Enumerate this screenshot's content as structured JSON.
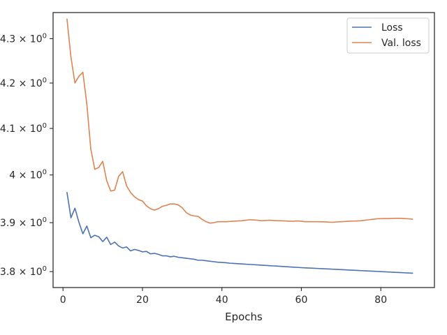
{
  "chart_data": {
    "type": "line",
    "title": "",
    "xlabel": "Epochs",
    "ylabel": "",
    "xlim": [
      -2.5,
      93.5
    ],
    "ylim": [
      3.768,
      4.36
    ],
    "yscale": "log",
    "x_ticks": [
      0,
      20,
      40,
      60,
      80
    ],
    "x_tick_labels": [
      "0",
      "20",
      "40",
      "60",
      "80"
    ],
    "y_ticks": [
      3.8,
      3.9,
      4.0,
      4.1,
      4.2,
      4.3
    ],
    "y_tick_labels": [
      {
        "mant": "3.8",
        "base": "10",
        "exp": "0"
      },
      {
        "mant": "3.9",
        "base": "10",
        "exp": "0"
      },
      {
        "mant": "4",
        "base": "10",
        "exp": "0"
      },
      {
        "mant": "4.1",
        "base": "10",
        "exp": "0"
      },
      {
        "mant": "4.2",
        "base": "10",
        "exp": "0"
      },
      {
        "mant": "4.3",
        "base": "10",
        "exp": "0"
      }
    ],
    "grid": false,
    "legend_position": "top-right",
    "series": [
      {
        "name": "Loss",
        "color": "#4c72b0",
        "x": [
          1,
          2,
          3,
          4,
          5,
          6,
          7,
          8,
          9,
          10,
          11,
          12,
          13,
          14,
          15,
          16,
          17,
          18,
          19,
          20,
          21,
          22,
          23,
          24,
          25,
          26,
          27,
          28,
          29,
          30,
          31,
          32,
          33,
          34,
          35,
          36,
          37,
          38,
          39,
          40,
          41,
          42,
          43,
          44,
          45,
          46,
          47,
          48,
          49,
          50,
          51,
          52,
          53,
          54,
          55,
          56,
          57,
          58,
          59,
          60,
          61,
          62,
          63,
          64,
          65,
          66,
          67,
          68,
          69,
          70,
          71,
          72,
          73,
          74,
          75,
          76,
          77,
          78,
          79,
          80,
          81,
          82,
          83,
          84,
          85,
          86,
          87,
          88
        ],
        "y": [
          3.963,
          3.91,
          3.93,
          3.901,
          3.877,
          3.893,
          3.869,
          3.874,
          3.871,
          3.861,
          3.87,
          3.855,
          3.86,
          3.852,
          3.848,
          3.85,
          3.842,
          3.845,
          3.843,
          3.84,
          3.841,
          3.836,
          3.837,
          3.835,
          3.832,
          3.832,
          3.83,
          3.831,
          3.829,
          3.828,
          3.827,
          3.826,
          3.825,
          3.823,
          3.823,
          3.822,
          3.821,
          3.82,
          3.819,
          3.8185,
          3.818,
          3.817,
          3.8165,
          3.816,
          3.8155,
          3.815,
          3.8145,
          3.814,
          3.8135,
          3.813,
          3.8125,
          3.812,
          3.8115,
          3.811,
          3.8105,
          3.81,
          3.8095,
          3.809,
          3.8085,
          3.808,
          3.8076,
          3.8072,
          3.8068,
          3.8064,
          3.806,
          3.8056,
          3.8052,
          3.8048,
          3.8044,
          3.804,
          3.8036,
          3.8032,
          3.8028,
          3.8024,
          3.802,
          3.8016,
          3.8012,
          3.8008,
          3.8004,
          3.8,
          3.7996,
          3.7992,
          3.7988,
          3.7984,
          3.798,
          3.7976,
          3.7972,
          3.7968
        ]
      },
      {
        "name": "Val. loss",
        "color": "#dd8452",
        "x": [
          1,
          2,
          3,
          4,
          5,
          6,
          7,
          8,
          9,
          10,
          11,
          12,
          13,
          14,
          15,
          16,
          17,
          18,
          19,
          20,
          21,
          22,
          23,
          24,
          25,
          26,
          27,
          28,
          29,
          30,
          31,
          32,
          33,
          34,
          35,
          36,
          37,
          38,
          39,
          40,
          41,
          42,
          43,
          44,
          45,
          46,
          47,
          48,
          49,
          50,
          51,
          52,
          53,
          54,
          55,
          56,
          57,
          58,
          59,
          60,
          61,
          62,
          63,
          64,
          65,
          66,
          67,
          68,
          69,
          70,
          71,
          72,
          73,
          74,
          75,
          76,
          77,
          78,
          79,
          80,
          81,
          82,
          83,
          84,
          85,
          86,
          87,
          88
        ],
        "y": [
          4.345,
          4.258,
          4.2,
          4.215,
          4.224,
          4.153,
          4.055,
          4.012,
          4.016,
          4.029,
          3.988,
          3.966,
          3.968,
          3.997,
          4.007,
          3.977,
          3.963,
          3.954,
          3.948,
          3.945,
          3.935,
          3.929,
          3.926,
          3.929,
          3.934,
          3.936,
          3.939,
          3.939,
          3.937,
          3.931,
          3.921,
          3.916,
          3.914,
          3.913,
          3.907,
          3.902,
          3.899,
          3.9,
          3.902,
          3.902,
          3.902,
          3.9025,
          3.903,
          3.9035,
          3.904,
          3.905,
          3.906,
          3.9055,
          3.905,
          3.904,
          3.9045,
          3.905,
          3.9045,
          3.904,
          3.904,
          3.9035,
          3.903,
          3.903,
          3.9035,
          3.903,
          3.902,
          3.902,
          3.902,
          3.902,
          3.9018,
          3.9016,
          3.901,
          3.9008,
          3.9015,
          3.902,
          3.9025,
          3.903,
          3.9033,
          3.9035,
          3.904,
          3.905,
          3.906,
          3.907,
          3.908,
          3.9083,
          3.9085,
          3.9085,
          3.9088,
          3.909,
          3.909,
          3.9085,
          3.908,
          3.907
        ]
      }
    ]
  }
}
